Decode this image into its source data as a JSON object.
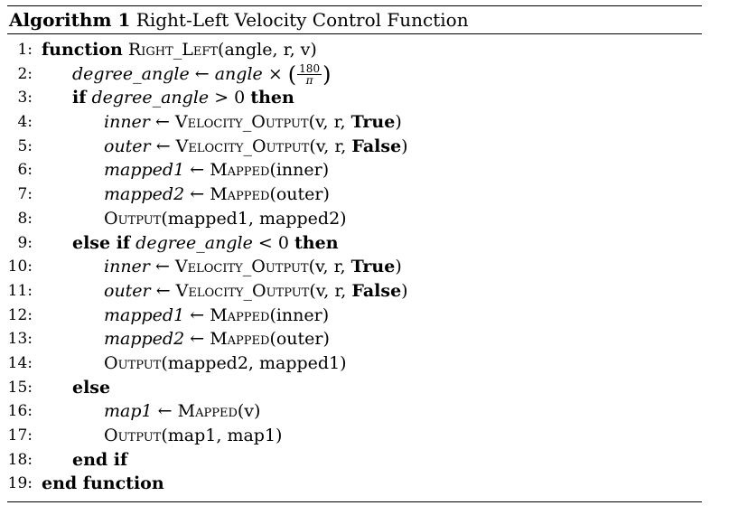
{
  "algorithm": {
    "caption_label": "Algorithm 1",
    "caption_title": "Right-Left Velocity Control Function"
  },
  "tokens": {
    "function": "function",
    "end_function": "end function",
    "if": "if",
    "then": "then",
    "else_if": "else if",
    "else": "else",
    "end_if": "end if",
    "true": "True",
    "false": "False",
    "arrow": "←",
    "times": "×",
    "gt_zero": "> 0",
    "lt_zero": "< 0",
    "frac_num": "180",
    "frac_den": "π"
  },
  "lines": [
    {
      "no": "1:",
      "text": ""
    },
    {
      "no": "2:",
      "text": ""
    },
    {
      "no": "3:",
      "text": ""
    },
    {
      "no": "4:",
      "text": ""
    },
    {
      "no": "5:",
      "text": ""
    },
    {
      "no": "6:",
      "text": ""
    },
    {
      "no": "7:",
      "text": ""
    },
    {
      "no": "8:",
      "text": ""
    },
    {
      "no": "9:",
      "text": ""
    },
    {
      "no": "10:",
      "text": ""
    },
    {
      "no": "11:",
      "text": ""
    },
    {
      "no": "12:",
      "text": ""
    },
    {
      "no": "13:",
      "text": ""
    },
    {
      "no": "14:",
      "text": ""
    },
    {
      "no": "15:",
      "text": ""
    },
    {
      "no": "16:",
      "text": ""
    },
    {
      "no": "17:",
      "text": ""
    },
    {
      "no": "18:",
      "text": ""
    },
    {
      "no": "19:",
      "text": ""
    }
  ],
  "code": {
    "l1_name": "Right_Left",
    "l1_args": "(angle, r, v)",
    "l2_var": "degree_angle",
    "l2_expr": "angle",
    "l3_var": "degree_angle",
    "l4_var": "inner",
    "l4_fn": "Velocity_Output",
    "l4_args": "(v, r, ",
    "l5_var": "outer",
    "l5_fn": "Velocity_Output",
    "l5_args": "(v, r, ",
    "l6_var": "mapped1",
    "l6_fn": "Mapped",
    "l6_args": "(inner)",
    "l7_var": "mapped2",
    "l7_fn": "Mapped",
    "l7_args": "(outer)",
    "l8_fn": "Output",
    "l8_args": "(mapped1, mapped2)",
    "l9_var": "degree_angle",
    "l10_var": "inner",
    "l10_fn": "Velocity_Output",
    "l10_args": "(v, r, ",
    "l11_var": "outer",
    "l11_fn": "Velocity_Output",
    "l11_args": "(v, r, ",
    "l12_var": "mapped1",
    "l12_fn": "Mapped",
    "l12_args": "(inner)",
    "l13_var": "mapped2",
    "l13_fn": "Mapped",
    "l13_args": "(outer)",
    "l14_fn": "Output",
    "l14_args": "(mapped2, mapped1)",
    "l16_var": "map1",
    "l16_fn": "Mapped",
    "l16_args": "(v)",
    "l17_fn": "Output",
    "l17_args": "(map1, map1)"
  }
}
